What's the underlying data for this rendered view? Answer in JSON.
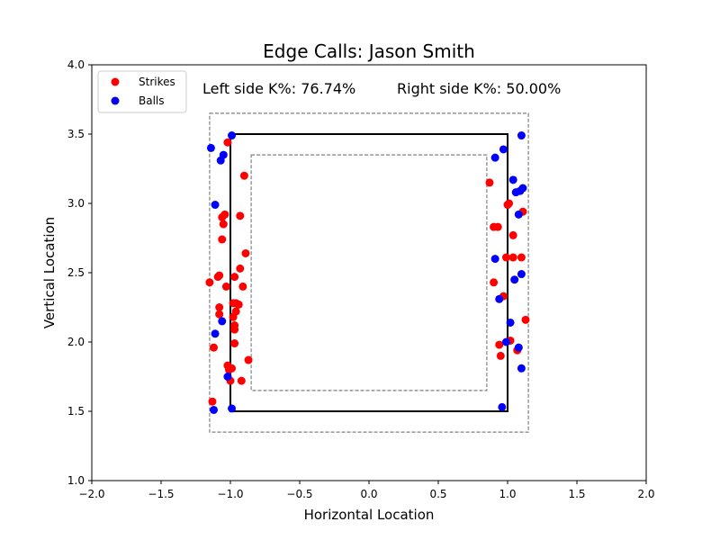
{
  "chart_data": {
    "type": "scatter",
    "title": "Edge Calls: Jason Smith",
    "xlabel": "Horizontal Location",
    "ylabel": "Vertical Location",
    "xlim": [
      -2.0,
      2.0
    ],
    "ylim": [
      1.0,
      4.0
    ],
    "xticks": [
      "−2.0",
      "−1.5",
      "−1.0",
      "−0.5",
      "0.0",
      "0.5",
      "1.0",
      "1.5",
      "2.0"
    ],
    "yticks": [
      "1.0",
      "1.5",
      "2.0",
      "2.5",
      "3.0",
      "3.5",
      "4.0"
    ],
    "xtick_values": [
      -2.0,
      -1.5,
      -1.0,
      -0.5,
      0.0,
      0.5,
      1.0,
      1.5,
      2.0
    ],
    "ytick_values": [
      1.0,
      1.5,
      2.0,
      2.5,
      3.0,
      3.5,
      4.0
    ],
    "grid": false,
    "legend_position": "top-left",
    "annotations": {
      "left": "Left side K%: 76.74%",
      "right": "Right side K%: 50.00%"
    },
    "zones": {
      "strike_zone": {
        "x": [
          -1.0,
          1.0
        ],
        "y": [
          1.5,
          3.5
        ],
        "color": "#000000",
        "style": "solid"
      },
      "outer_edge": {
        "x": [
          -1.15,
          1.15
        ],
        "y": [
          1.35,
          3.65
        ],
        "color": "#808080",
        "style": "dashed"
      },
      "inner_edge": {
        "x": [
          -0.85,
          0.85
        ],
        "y": [
          1.65,
          3.35
        ],
        "color": "#808080",
        "style": "dashed"
      }
    },
    "series": [
      {
        "name": "Strikes",
        "color": "#ff0000",
        "points": [
          [
            -1.15,
            2.43
          ],
          [
            -1.13,
            1.57
          ],
          [
            -1.12,
            1.96
          ],
          [
            -1.09,
            2.47
          ],
          [
            -1.08,
            2.48
          ],
          [
            -1.08,
            2.2
          ],
          [
            -1.08,
            2.25
          ],
          [
            -1.06,
            2.74
          ],
          [
            -1.06,
            2.9
          ],
          [
            -1.05,
            2.85
          ],
          [
            -1.04,
            2.92
          ],
          [
            -1.03,
            2.4
          ],
          [
            -1.02,
            3.44
          ],
          [
            -1.02,
            1.83
          ],
          [
            -1.01,
            1.8
          ],
          [
            -1.0,
            1.72
          ],
          [
            -0.99,
            1.81
          ],
          [
            -0.98,
            2.28
          ],
          [
            -0.98,
            2.18
          ],
          [
            -0.97,
            2.47
          ],
          [
            -0.97,
            2.12
          ],
          [
            -0.97,
            2.09
          ],
          [
            -0.97,
            1.99
          ],
          [
            -0.96,
            2.22
          ],
          [
            -0.96,
            2.28
          ],
          [
            -0.94,
            2.27
          ],
          [
            -0.93,
            2.91
          ],
          [
            -0.93,
            2.53
          ],
          [
            -0.92,
            1.72
          ],
          [
            -0.91,
            2.4
          ],
          [
            -0.9,
            3.2
          ],
          [
            -0.89,
            2.64
          ],
          [
            -0.87,
            1.87
          ],
          [
            0.87,
            3.15
          ],
          [
            0.9,
            2.43
          ],
          [
            0.9,
            2.83
          ],
          [
            0.93,
            2.83
          ],
          [
            0.94,
            1.98
          ],
          [
            0.95,
            1.9
          ],
          [
            0.97,
            2.33
          ],
          [
            0.99,
            2.61
          ],
          [
            1.0,
            2.99
          ],
          [
            1.01,
            3.0
          ],
          [
            1.02,
            2.01
          ],
          [
            1.04,
            2.77
          ],
          [
            1.04,
            2.61
          ],
          [
            1.07,
            1.94
          ],
          [
            1.1,
            2.61
          ],
          [
            1.11,
            2.94
          ],
          [
            1.13,
            2.16
          ]
        ]
      },
      {
        "name": "Balls",
        "color": "#0000ff",
        "points": [
          [
            -1.14,
            3.4
          ],
          [
            -1.12,
            1.51
          ],
          [
            -1.11,
            2.99
          ],
          [
            -1.11,
            2.06
          ],
          [
            -1.07,
            3.31
          ],
          [
            -1.06,
            2.15
          ],
          [
            -1.05,
            3.35
          ],
          [
            -1.02,
            1.75
          ],
          [
            -0.99,
            3.49
          ],
          [
            -0.99,
            1.52
          ],
          [
            0.91,
            3.33
          ],
          [
            0.91,
            2.6
          ],
          [
            0.94,
            2.31
          ],
          [
            0.96,
            1.53
          ],
          [
            0.97,
            3.39
          ],
          [
            0.99,
            2.0
          ],
          [
            1.02,
            2.14
          ],
          [
            1.04,
            3.17
          ],
          [
            1.05,
            2.45
          ],
          [
            1.06,
            3.08
          ],
          [
            1.08,
            2.92
          ],
          [
            1.08,
            1.96
          ],
          [
            1.09,
            3.09
          ],
          [
            1.1,
            3.49
          ],
          [
            1.1,
            1.81
          ],
          [
            1.1,
            2.49
          ],
          [
            1.11,
            3.11
          ]
        ]
      }
    ]
  }
}
